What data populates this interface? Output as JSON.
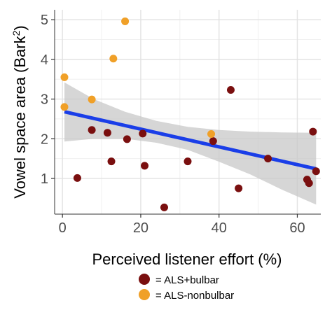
{
  "chart_data": {
    "type": "scatter",
    "xlabel": "Perceived listener effort (%)",
    "ylabel_main": "Vowel space area (Bark",
    "ylabel_sup": "2",
    "ylabel_close": ")",
    "xlim": [
      -2,
      66
    ],
    "ylim": [
      0.1,
      5.25
    ],
    "x_ticks": [
      0,
      20,
      40,
      60
    ],
    "x_tick_labels": [
      "0",
      "20",
      "40",
      "60"
    ],
    "y_ticks": [
      1,
      2,
      3,
      4,
      5
    ],
    "y_tick_labels": [
      "1",
      "2",
      "3",
      "4",
      "5"
    ],
    "grid": true,
    "legend_position": "bottom",
    "series": [
      {
        "name": "= ALS+bulbar",
        "color": "#7a0f0f",
        "points": [
          [
            3.8,
            1.01
          ],
          [
            7.5,
            2.22
          ],
          [
            11.5,
            2.15
          ],
          [
            12.5,
            1.43
          ],
          [
            16.5,
            1.99
          ],
          [
            20.5,
            2.13
          ],
          [
            21,
            1.32
          ],
          [
            26,
            0.27
          ],
          [
            32,
            1.43
          ],
          [
            38.5,
            1.94
          ],
          [
            43,
            3.23
          ],
          [
            45,
            0.75
          ],
          [
            52.5,
            1.5
          ],
          [
            62.5,
            0.97
          ],
          [
            63,
            0.88
          ],
          [
            64,
            2.18
          ],
          [
            64.8,
            1.18
          ]
        ]
      },
      {
        "name": "= ALS-nonbulbar",
        "color": "#f0a028",
        "points": [
          [
            0.5,
            3.55
          ],
          [
            0.5,
            2.8
          ],
          [
            7.5,
            2.99
          ],
          [
            13,
            4.02
          ],
          [
            16,
            4.96
          ],
          [
            38,
            2.12
          ]
        ]
      }
    ],
    "fit_line": {
      "color": "#1a3ee8",
      "x": [
        0.5,
        64.8
      ],
      "y": [
        2.68,
        1.24
      ]
    },
    "confidence_band": {
      "color": "#c8c8c8",
      "x": [
        0.5,
        8,
        16,
        24,
        32,
        40,
        48,
        56,
        64.8
      ],
      "upper": [
        3.42,
        3.0,
        2.68,
        2.45,
        2.3,
        2.22,
        2.18,
        2.16,
        2.15
      ],
      "lower": [
        1.93,
        2.0,
        2.0,
        1.9,
        1.72,
        1.42,
        1.1,
        0.72,
        0.34
      ]
    }
  }
}
